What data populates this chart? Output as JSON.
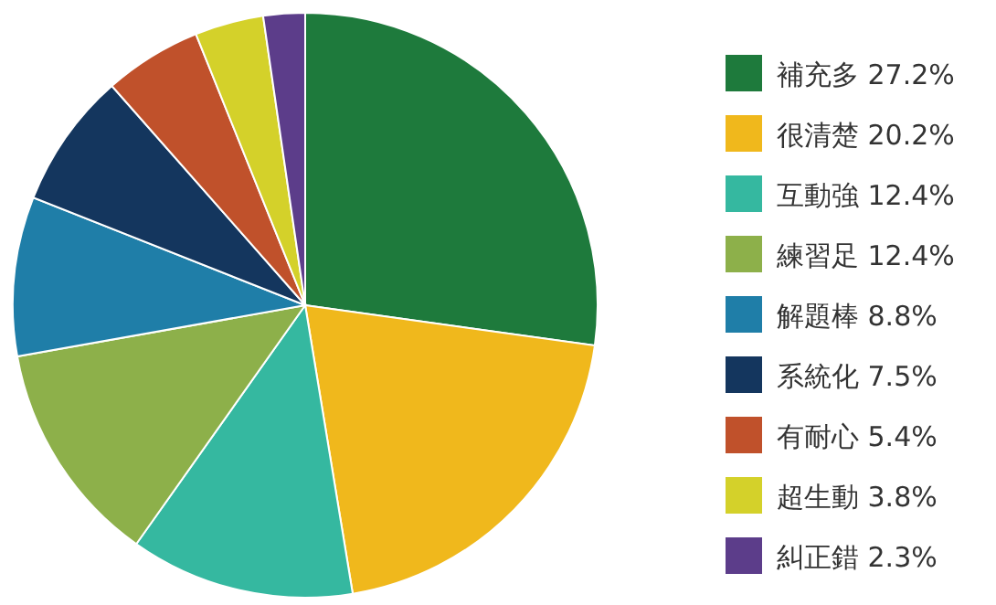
{
  "chart_data": {
    "type": "pie",
    "categories": [
      "補充多",
      "很清楚",
      "互動強",
      "練習足",
      "解題棒",
      "系統化",
      "有耐心",
      "超生動",
      "糾正錯"
    ],
    "values": [
      27.2,
      20.2,
      12.4,
      12.4,
      8.8,
      7.5,
      5.4,
      3.8,
      2.3
    ],
    "value_labels": [
      "27.2%",
      "20.2%",
      "12.4%",
      "12.4%",
      "8.8%",
      "7.5%",
      "5.4%",
      "3.8%",
      "2.3%"
    ],
    "colors": [
      "#1e7a3c",
      "#f0b81c",
      "#35b8a0",
      "#8db04a",
      "#1f7ea8",
      "#14365e",
      "#c0512b",
      "#d4d12a",
      "#5c3d8a"
    ],
    "legend": "right"
  }
}
